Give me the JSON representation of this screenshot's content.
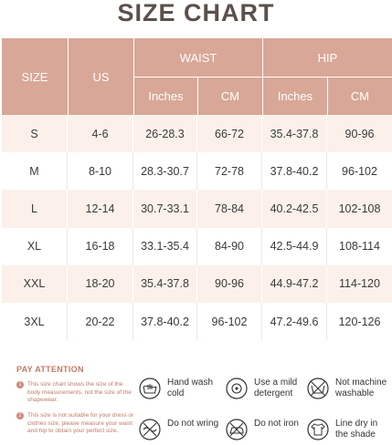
{
  "title": "SIZE CHART",
  "header": {
    "size": "SIZE",
    "us": "US",
    "waist": "WAIST",
    "hip": "HIP",
    "inches": "Inches",
    "cm": "CM"
  },
  "rows": [
    {
      "size": "S",
      "us": "4-6",
      "waist_in": "26-28.3",
      "waist_cm": "66-72",
      "hip_in": "35.4-37.8",
      "hip_cm": "90-96"
    },
    {
      "size": "M",
      "us": "8-10",
      "waist_in": "28.3-30.7",
      "waist_cm": "72-78",
      "hip_in": "37.8-40.2",
      "hip_cm": "96-102"
    },
    {
      "size": "L",
      "us": "12-14",
      "waist_in": "30.7-33.1",
      "waist_cm": "78-84",
      "hip_in": "40.2-42.5",
      "hip_cm": "102-108"
    },
    {
      "size": "XL",
      "us": "16-18",
      "waist_in": "33.1-35.4",
      "waist_cm": "84-90",
      "hip_in": "42.5-44.9",
      "hip_cm": "108-114"
    },
    {
      "size": "XXL",
      "us": "18-20",
      "waist_in": "35.4-37.8",
      "waist_cm": "90-96",
      "hip_in": "44.9-47.2",
      "hip_cm": "114-120"
    },
    {
      "size": "3XL",
      "us": "20-22",
      "waist_in": "37.8-40.2",
      "waist_cm": "96-102",
      "hip_in": "47.2-49.6",
      "hip_cm": "120-126"
    }
  ],
  "attention": {
    "title": "PAY ATTENTION",
    "notes": [
      {
        "num": "1",
        "text": "This size chart shows the size of the body measurements, not the size of the shapewear."
      },
      {
        "num": "2",
        "text": "This size is not suitable for your dress or clothes size, please measure your waist and hip to obtain your perfect size."
      }
    ]
  },
  "care": [
    {
      "icon": "hand-wash-icon",
      "label": "Hand wash cold"
    },
    {
      "icon": "mild-detergent-icon",
      "label": "Use a mild detergent"
    },
    {
      "icon": "no-machine-wash-icon",
      "label": "Not machine washable"
    },
    {
      "icon": "do-not-wring-icon",
      "label": "Do not wring"
    },
    {
      "icon": "do-not-iron-icon",
      "label": "Do not iron"
    },
    {
      "icon": "line-dry-shade-icon",
      "label": "Line dry in the shade"
    }
  ],
  "colors": {
    "header_bg": "#d8a797",
    "row_alt": "#fbf1ea",
    "accent": "#c07a68"
  }
}
